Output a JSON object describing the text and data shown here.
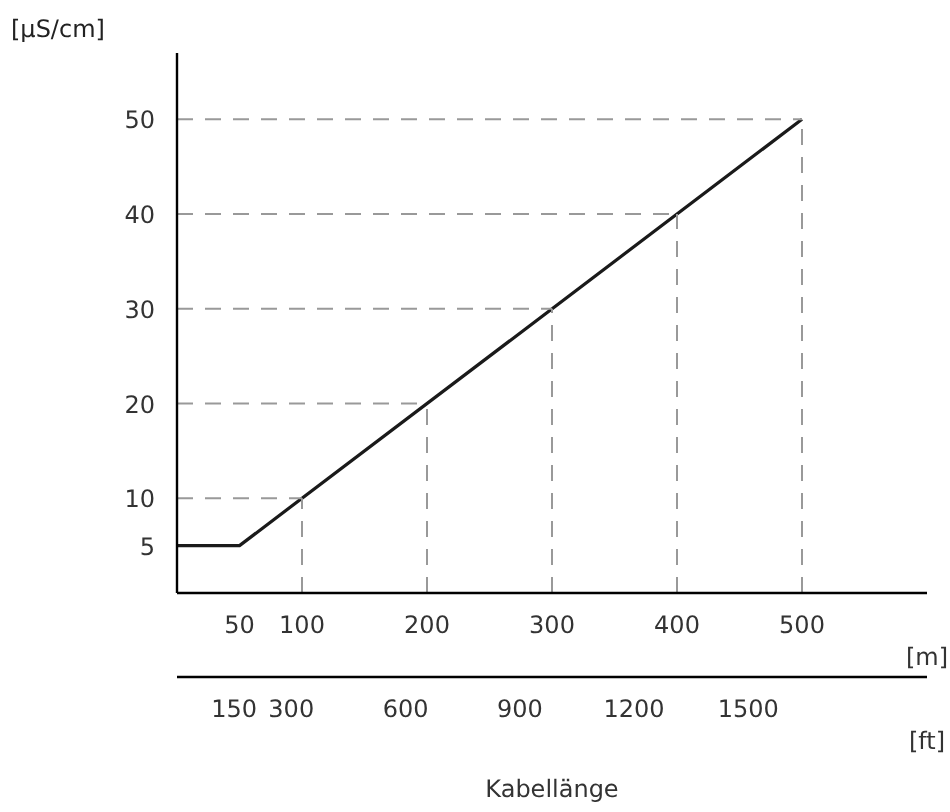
{
  "chart_data": {
    "type": "line",
    "ylabel": "[µS/cm]",
    "xlabel": "[m]",
    "x2label": "[ft]",
    "annotations": [
      "Kabellänge"
    ],
    "x": [
      0,
      50,
      500
    ],
    "series": [
      {
        "color": "#1a1a1a",
        "values": [
          5,
          5,
          50
        ]
      }
    ],
    "xlim": [
      0,
      600
    ],
    "xticks": [
      50,
      100,
      200,
      300,
      400,
      500
    ],
    "x2lim": [
      0,
      1969
    ],
    "x2ticks": [
      150,
      300,
      600,
      900,
      1200,
      1500
    ],
    "ylim": [
      0,
      57
    ],
    "yticks": [
      5,
      10,
      20,
      30,
      40,
      50
    ],
    "ref_lines": [
      {
        "axis": "y",
        "value": 10,
        "color": "#999999",
        "line_style": "dashed"
      },
      {
        "axis": "y",
        "value": 20,
        "color": "#999999",
        "line_style": "dashed"
      },
      {
        "axis": "y",
        "value": 30,
        "color": "#999999",
        "line_style": "dashed"
      },
      {
        "axis": "y",
        "value": 40,
        "color": "#999999",
        "line_style": "dashed"
      },
      {
        "axis": "y",
        "value": 50,
        "color": "#999999",
        "line_style": "dashed"
      },
      {
        "axis": "x",
        "value": 100,
        "color": "#999999",
        "line_style": "dashed"
      },
      {
        "axis": "x",
        "value": 200,
        "color": "#999999",
        "line_style": "dashed"
      },
      {
        "axis": "x",
        "value": 300,
        "color": "#999999",
        "line_style": "dashed"
      },
      {
        "axis": "x",
        "value": 400,
        "color": "#999999",
        "line_style": "dashed"
      },
      {
        "axis": "x",
        "value": 500,
        "color": "#999999",
        "line_style": "dashed"
      }
    ],
    "grid": false,
    "marker": "none",
    "line_style": "solid"
  }
}
